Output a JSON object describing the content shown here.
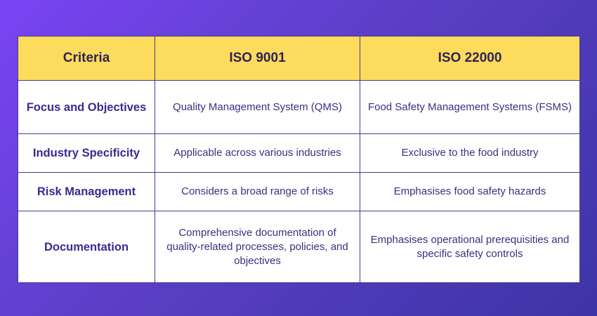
{
  "table": {
    "headers": [
      "Criteria",
      "ISO 9001",
      "ISO 22000"
    ],
    "rows": [
      {
        "criteria": "Focus and Objectives",
        "iso9001": "Quality Management System (QMS)",
        "iso22000": "Food Safety Management Systems (FSMS)"
      },
      {
        "criteria": "Industry Specificity",
        "iso9001": "Applicable across various industries",
        "iso22000": "Exclusive to the food industry"
      },
      {
        "criteria": "Risk Management",
        "iso9001": "Considers a broad range of risks",
        "iso22000": "Emphasises food safety hazards"
      },
      {
        "criteria": "Documentation",
        "iso9001": "Comprehensive documentation of quality-related processes, policies, and objectives",
        "iso22000": "Emphasises operational prerequisities and specific safety controls"
      }
    ]
  },
  "colors": {
    "background_start": "#7a44f5",
    "background_end": "#3d34a6",
    "header_fill": "#fddb5c",
    "header_text": "#2f2357",
    "cell_text": "#3a2f80",
    "border": "#4b3b8f"
  }
}
